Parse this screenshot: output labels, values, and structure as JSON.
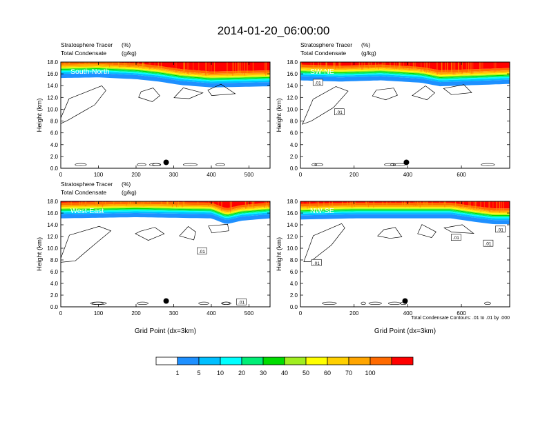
{
  "figure": {
    "title": "2014-01-20_06:00:00",
    "footnote": "Total Condensate Contours: .01 to .01 by .000"
  },
  "colors": {
    "levels": [
      "#ffffff",
      "#1e90ff",
      "#00bfff",
      "#00ffff",
      "#00ee76",
      "#00dd00",
      "#a0ee20",
      "#ffff00",
      "#ffd000",
      "#ffa500",
      "#ff6a00",
      "#ff0000"
    ]
  },
  "colorbar": {
    "labels": [
      "1",
      "5",
      "10",
      "20",
      "30",
      "40",
      "50",
      "60",
      "70",
      "100"
    ]
  },
  "chart_data": [
    {
      "type": "heatmap",
      "panel": "South-North",
      "subtitle_left": "Stratosphere Tracer",
      "subtitle_unit": "(%)",
      "subtitle2_left": "Total Condensate",
      "subtitle2_unit": "(g/kg)",
      "ylabel": "Height (km)",
      "xlabel": "",
      "xlim": [
        0,
        556
      ],
      "ylim": [
        0,
        18
      ],
      "xticks": [
        "0",
        "100",
        "200",
        "300",
        "400",
        "500"
      ],
      "yticks": [
        "0.0",
        "2.0",
        "4.0",
        "6.0",
        "8.0",
        "10.0",
        "12.0",
        "14.0",
        "16.0",
        "18.0"
      ],
      "marker_x": 280,
      "marker_y": 1.0,
      "tropopause": [
        [
          0,
          16.2
        ],
        [
          100,
          16.3
        ],
        [
          200,
          16.0
        ],
        [
          260,
          15.6
        ],
        [
          320,
          15.0
        ],
        [
          400,
          14.6
        ],
        [
          556,
          14.8
        ]
      ],
      "contour_labels": []
    },
    {
      "type": "heatmap",
      "panel": "SW-NE",
      "subtitle_left": "Stratosphere Tracer",
      "subtitle_unit": "(%)",
      "subtitle2_left": "Total Condensate",
      "subtitle2_unit": "(g/kg)",
      "ylabel": "Height (km)",
      "xlabel": "",
      "xlim": [
        0,
        780
      ],
      "ylim": [
        0,
        18
      ],
      "xticks": [
        "0",
        "200",
        "400",
        "600"
      ],
      "yticks": [
        "0.0",
        "2.0",
        "4.0",
        "6.0",
        "8.0",
        "10.0",
        "12.0",
        "14.0",
        "16.0",
        "18.0"
      ],
      "marker_x": 395,
      "marker_y": 1.0,
      "tropopause": [
        [
          0,
          15.8
        ],
        [
          150,
          15.6
        ],
        [
          300,
          15.8
        ],
        [
          450,
          15.4
        ],
        [
          520,
          14.8
        ],
        [
          650,
          15.0
        ],
        [
          780,
          15.2
        ]
      ],
      "contour_labels": [
        {
          "text": ".01",
          "x": 65,
          "y": 14.5
        },
        {
          "text": ".01",
          "x": 145,
          "y": 9.5
        }
      ]
    },
    {
      "type": "heatmap",
      "panel": "West-East",
      "subtitle_left": "Stratosphere Tracer",
      "subtitle_unit": "(%)",
      "subtitle2_left": "Total Condensate",
      "subtitle2_unit": "(g/kg)",
      "ylabel": "Height (km)",
      "xlabel": "Grid Point (dx=3km)",
      "xlim": [
        0,
        556
      ],
      "ylim": [
        0,
        18
      ],
      "xticks": [
        "0",
        "100",
        "200",
        "300",
        "400",
        "500"
      ],
      "yticks": [
        "0.0",
        "2.0",
        "4.0",
        "6.0",
        "8.0",
        "10.0",
        "12.0",
        "14.0",
        "16.0",
        "18.0"
      ],
      "marker_x": 280,
      "marker_y": 1.0,
      "tropopause": [
        [
          0,
          16.0
        ],
        [
          200,
          16.2
        ],
        [
          400,
          16.0
        ],
        [
          440,
          15.0
        ],
        [
          480,
          15.6
        ],
        [
          556,
          16.0
        ]
      ],
      "contour_labels": [
        {
          "text": ".01",
          "x": 375,
          "y": 9.5
        },
        {
          "text": ".01",
          "x": 480,
          "y": 0.8
        }
      ]
    },
    {
      "type": "heatmap",
      "panel": "NW-SE",
      "subtitle_left": "",
      "subtitle_unit": "",
      "subtitle2_left": "",
      "subtitle2_unit": "",
      "ylabel": "Height (km)",
      "xlabel": "Grid Point (dx=3km)",
      "xlim": [
        0,
        780
      ],
      "ylim": [
        0,
        18
      ],
      "xticks": [
        "0",
        "200",
        "400",
        "600"
      ],
      "yticks": [
        "0.0",
        "2.0",
        "4.0",
        "6.0",
        "8.0",
        "10.0",
        "12.0",
        "14.0",
        "16.0",
        "18.0"
      ],
      "marker_x": 390,
      "marker_y": 1.0,
      "tropopause": [
        [
          0,
          15.8
        ],
        [
          200,
          16.0
        ],
        [
          400,
          16.0
        ],
        [
          560,
          16.0
        ],
        [
          650,
          15.4
        ],
        [
          720,
          15.0
        ],
        [
          780,
          15.0
        ]
      ],
      "contour_labels": [
        {
          "text": ".01",
          "x": 60,
          "y": 7.5
        },
        {
          "text": ".01",
          "x": 580,
          "y": 11.8
        },
        {
          "text": ".01",
          "x": 700,
          "y": 10.8
        },
        {
          "text": ".01",
          "x": 745,
          "y": 13.2
        }
      ]
    }
  ]
}
